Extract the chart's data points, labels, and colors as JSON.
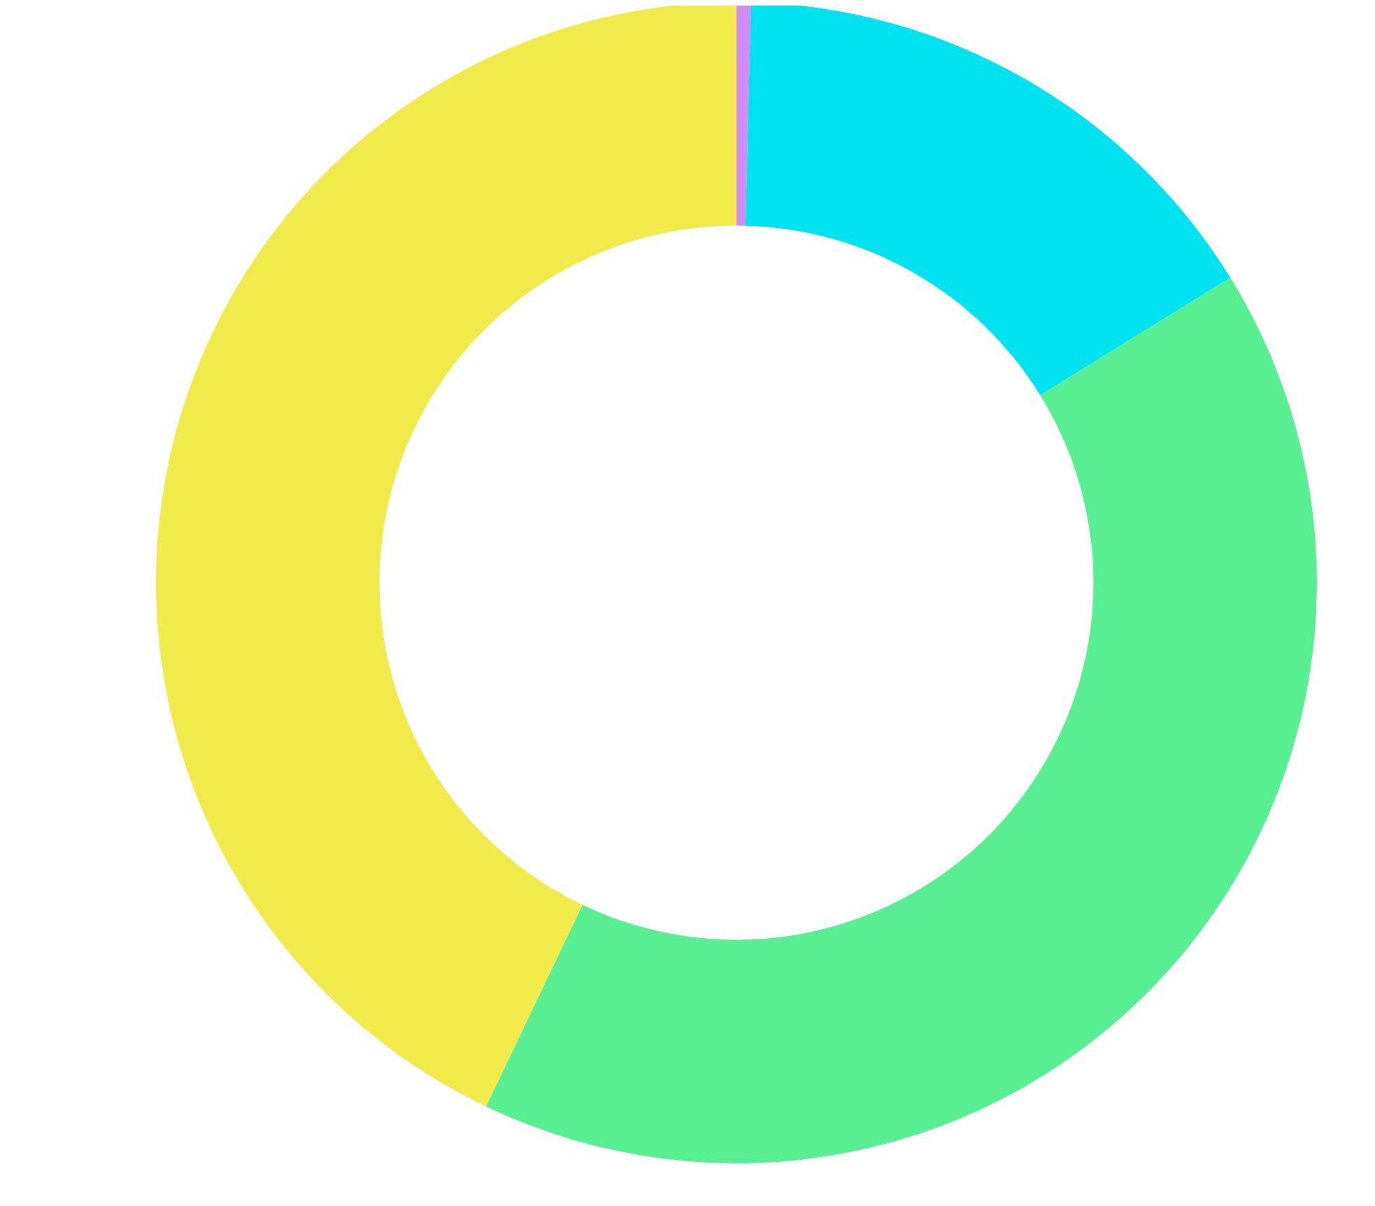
{
  "chart_data": {
    "type": "donut",
    "categories": [
      null,
      null,
      null,
      null
    ],
    "values": [
      0.4,
      15.8,
      40.9,
      42.9
    ],
    "colors": [
      "#d18cf5",
      "#00e2ef",
      "#58ef92",
      "#f0ea4a"
    ],
    "legend": false
  }
}
